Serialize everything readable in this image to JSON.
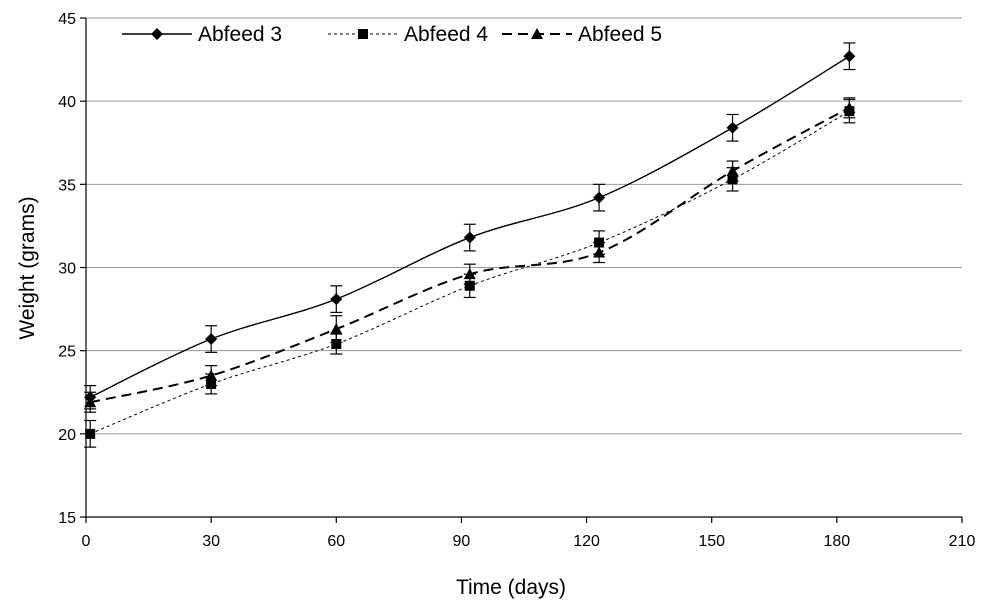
{
  "chart_data": {
    "type": "line",
    "xlabel": "Time (days)",
    "ylabel": "Weight (grams)",
    "xlim": [
      0,
      210
    ],
    "ylim": [
      15,
      45
    ],
    "xticks": [
      0,
      30,
      60,
      90,
      120,
      150,
      180,
      210
    ],
    "yticks": [
      15,
      20,
      25,
      30,
      35,
      40,
      45
    ],
    "grid": "horizontal",
    "legend_position": "top-left",
    "series": [
      {
        "name": "Abfeed 3",
        "marker": "diamond",
        "line_style": "solid",
        "x": [
          1,
          30,
          60,
          92,
          123,
          155,
          183
        ],
        "y": [
          22.2,
          25.7,
          28.1,
          31.8,
          34.2,
          38.4,
          42.7
        ],
        "error": [
          0.7,
          0.8,
          0.8,
          0.8,
          0.8,
          0.8,
          0.8
        ]
      },
      {
        "name": "Abfeed 4",
        "marker": "square",
        "line_style": "dotted",
        "x": [
          1,
          30,
          60,
          92,
          123,
          155,
          183
        ],
        "y": [
          20.0,
          23.0,
          25.4,
          28.9,
          31.5,
          35.3,
          39.4
        ],
        "error": [
          0.8,
          0.6,
          0.6,
          0.7,
          0.7,
          0.7,
          0.7
        ]
      },
      {
        "name": "Abfeed 5",
        "marker": "triangle",
        "line_style": "dashed",
        "x": [
          1,
          30,
          60,
          92,
          123,
          155,
          183
        ],
        "y": [
          21.9,
          23.5,
          26.3,
          29.6,
          30.9,
          35.8,
          39.6
        ],
        "error": [
          0.6,
          0.6,
          0.8,
          0.6,
          0.6,
          0.6,
          0.6
        ]
      }
    ]
  }
}
